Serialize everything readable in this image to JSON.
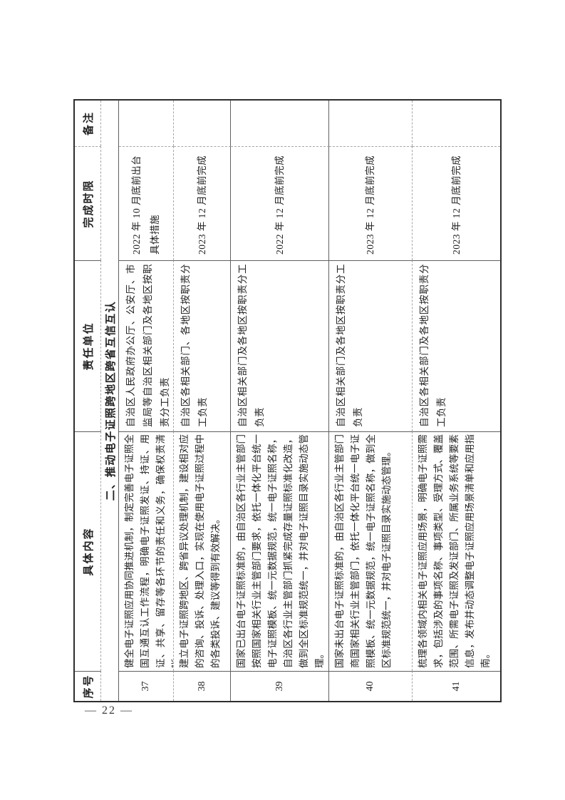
{
  "page": {
    "number_label": "— 22 —"
  },
  "table": {
    "headers": {
      "seq": "序号",
      "content": "具体内容",
      "unit": "责任单位",
      "deadline": "完成时限",
      "remark": "备注"
    },
    "section_title": "二、推动电子证照跨地区跨省互信互认",
    "rows": [
      {
        "seq": "37",
        "content": "健全电子证照应用协同推进机制，制定完善电子证照全国互通互认工作流程，明确电子证照发证、持证、用证、共享、留存等各环节的责任和义务，确保权责清晰。",
        "unit": "自治区人民政府办公厅、公安厅、市监局等自治区相关部门及各地区按职责分工负责",
        "deadline": "2022 年 10 月底前出台具体措施",
        "remark": ""
      },
      {
        "seq": "38",
        "content": "建立电子证照跨地区、跨省异议处理机制，建设相对应的咨询、投诉、处理入口，实现在使用电子证照过程中的各类投诉、建议等得到有效解决。",
        "unit": "自治区各相关部门、各地区按职责分工负责",
        "deadline": "2023 年 12 月底前完成",
        "remark": ""
      },
      {
        "seq": "39",
        "content": "国家已出台电子证照标准的，由自治区各行业主管部门按照国家相关行业主管部门要求，依托一体化平台统一电子证照模板、统一元数据规范，统一电子证照名称，自治区各行业主管部门抓紧完成存量证照标准化改造，做到全区标准规范统一，并对电子证照目录实施动态管理。",
        "unit": "自治区相关部门及各地区按职责分工负责",
        "deadline": "2022 年 12 月底前完成",
        "remark": ""
      },
      {
        "seq": "40",
        "content": "国家未出台电子证照标准的，由自治区各行业主管部门商国家相关行业主管部门，依托一体化平台统一电子证照模板、统一元数据规范，统一电子证照名称，做到全区标准规范统一，并对电子证照目录实施动态管理。",
        "unit": "自治区相关部门及各地区按职责分工负责",
        "deadline": "2023 年 12 月底前完成",
        "remark": ""
      },
      {
        "seq": "41",
        "content": "梳理各领域内相关电子证照应用场景，明确电子证照需求，包括涉及的事项名称、事项类型、受理方式、覆盖范围、所需电子证照及发证部门、所属业务系统等要素信息，发布并动态调整电子证照应用场景清单和应用指南。",
        "unit": "自治区各相关部门及各地区按职责分工负责",
        "deadline": "2023 年 12 月底前完成",
        "remark": ""
      }
    ]
  }
}
